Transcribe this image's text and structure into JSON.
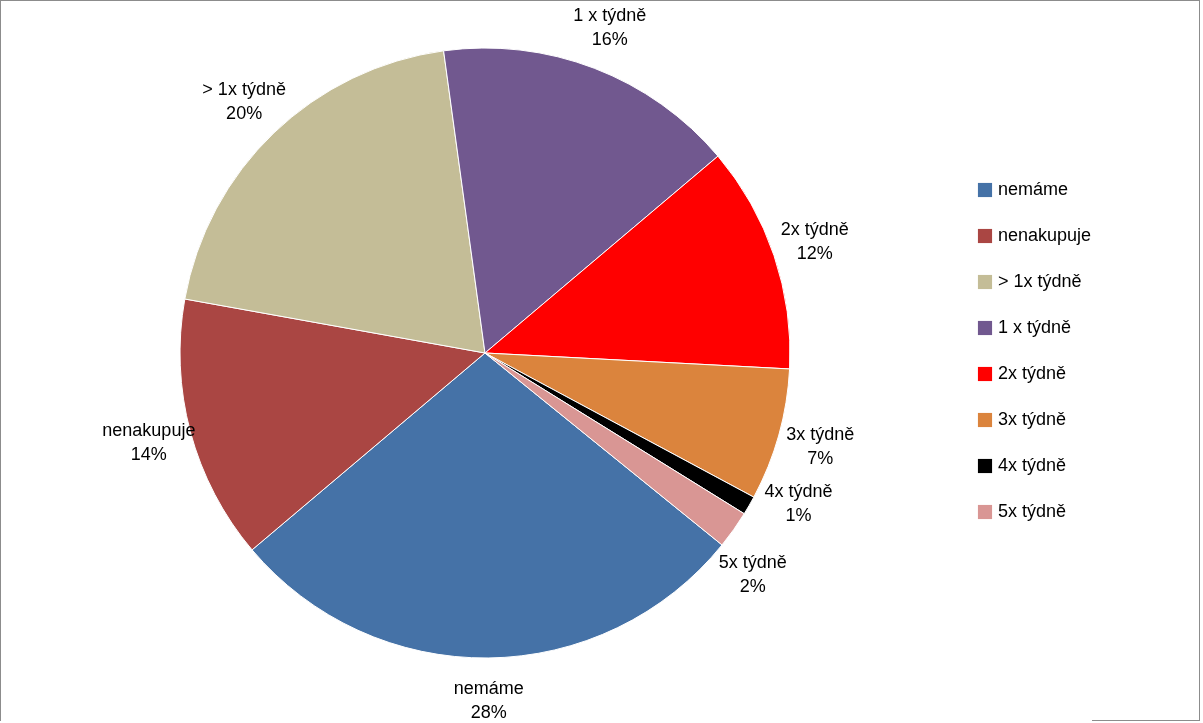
{
  "chart_data": {
    "type": "pie",
    "categories": [
      "nemáme",
      "nenakupuje",
      "> 1x týdně",
      "1 x týdně",
      "2x týdně",
      "3x týdně",
      "4x týdně",
      "5x týdně"
    ],
    "values": [
      28,
      14,
      20,
      16,
      12,
      7,
      1,
      2
    ],
    "value_labels": [
      "28%",
      "14%",
      "20%",
      "16%",
      "12%",
      "7%",
      "1%",
      "2%"
    ],
    "colors": [
      "#4572a7",
      "#aa4643",
      "#c4bd97",
      "#71588f",
      "#ff0000",
      "#db843d",
      "#000000",
      "#d99694"
    ],
    "legend": "right"
  }
}
